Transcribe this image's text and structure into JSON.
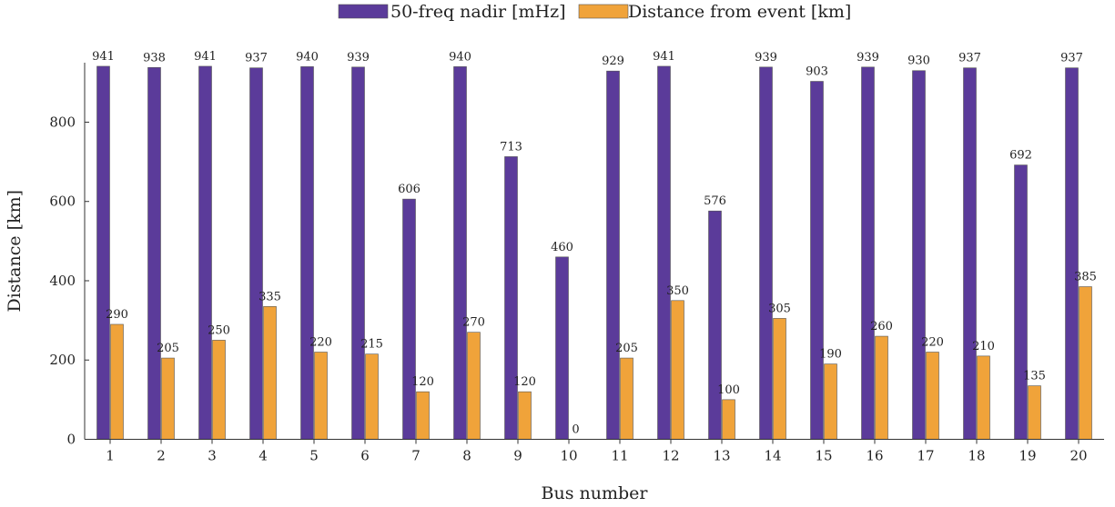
{
  "chart_data": {
    "type": "bar",
    "xlabel": "Bus number",
    "ylabel": "Distance [km]",
    "ylim": [
      0,
      950
    ],
    "yticks": [
      0,
      200,
      400,
      600,
      800
    ],
    "grid": false,
    "legend_position": "top-center",
    "categories": [
      "1",
      "2",
      "3",
      "4",
      "5",
      "6",
      "7",
      "8",
      "9",
      "10",
      "11",
      "12",
      "13",
      "14",
      "15",
      "16",
      "17",
      "18",
      "19",
      "20"
    ],
    "series": [
      {
        "name": "50-freq nadir [mHz]",
        "color": "#5b3b9a",
        "values": [
          941,
          938,
          941,
          937,
          940,
          939,
          606,
          940,
          713,
          460,
          929,
          941,
          576,
          939,
          903,
          939,
          930,
          937,
          692,
          937
        ]
      },
      {
        "name": "Distance from event [km]",
        "color": "#f0a33a",
        "values": [
          290,
          205,
          250,
          335,
          220,
          215,
          120,
          270,
          120,
          0,
          205,
          350,
          100,
          305,
          190,
          260,
          220,
          210,
          135,
          385
        ]
      }
    ]
  }
}
